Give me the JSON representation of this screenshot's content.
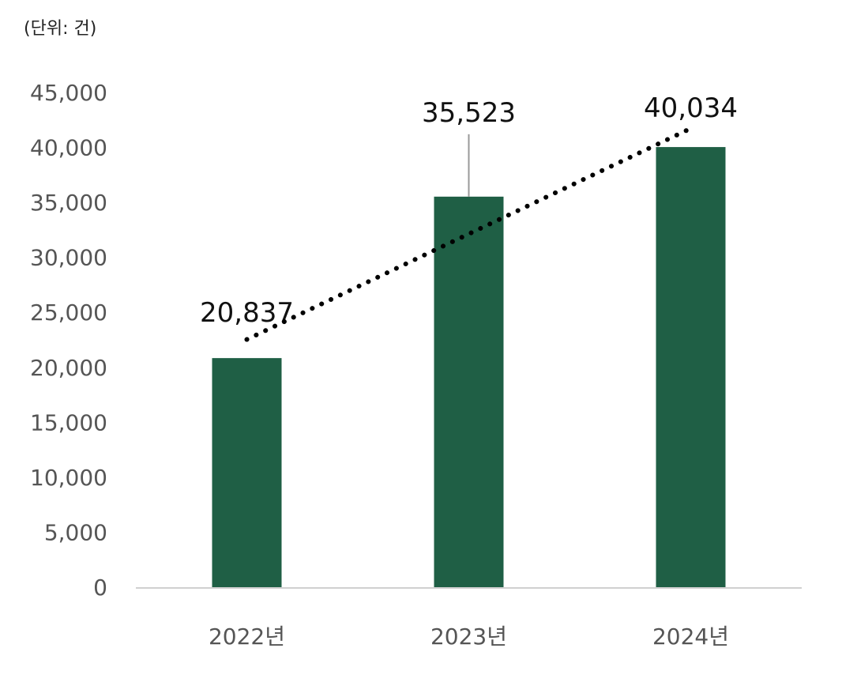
{
  "chart_data": {
    "type": "bar",
    "unit_label": "(단위: 건)",
    "categories": [
      "2022년",
      "2023년",
      "2024년"
    ],
    "values": [
      20837,
      35523,
      40034
    ],
    "value_labels": [
      "20,837",
      "35,523",
      "40,034"
    ],
    "ylim": [
      0,
      45000
    ],
    "yticks": [
      0,
      5000,
      10000,
      15000,
      20000,
      25000,
      30000,
      35000,
      40000,
      45000
    ],
    "ytick_labels": [
      "0",
      "5,000",
      "10,000",
      "15,000",
      "20,000",
      "25,000",
      "30,000",
      "35,000",
      "40,000",
      "45,000"
    ],
    "trendline": {
      "style": "dotted",
      "type": "linear"
    },
    "grid": false,
    "legend": "none",
    "colors": {
      "bar": "#1f5f45",
      "axis": "#d0d0d0",
      "tick_text": "#555555",
      "label_text": "#111111",
      "trend": "#000000"
    }
  }
}
